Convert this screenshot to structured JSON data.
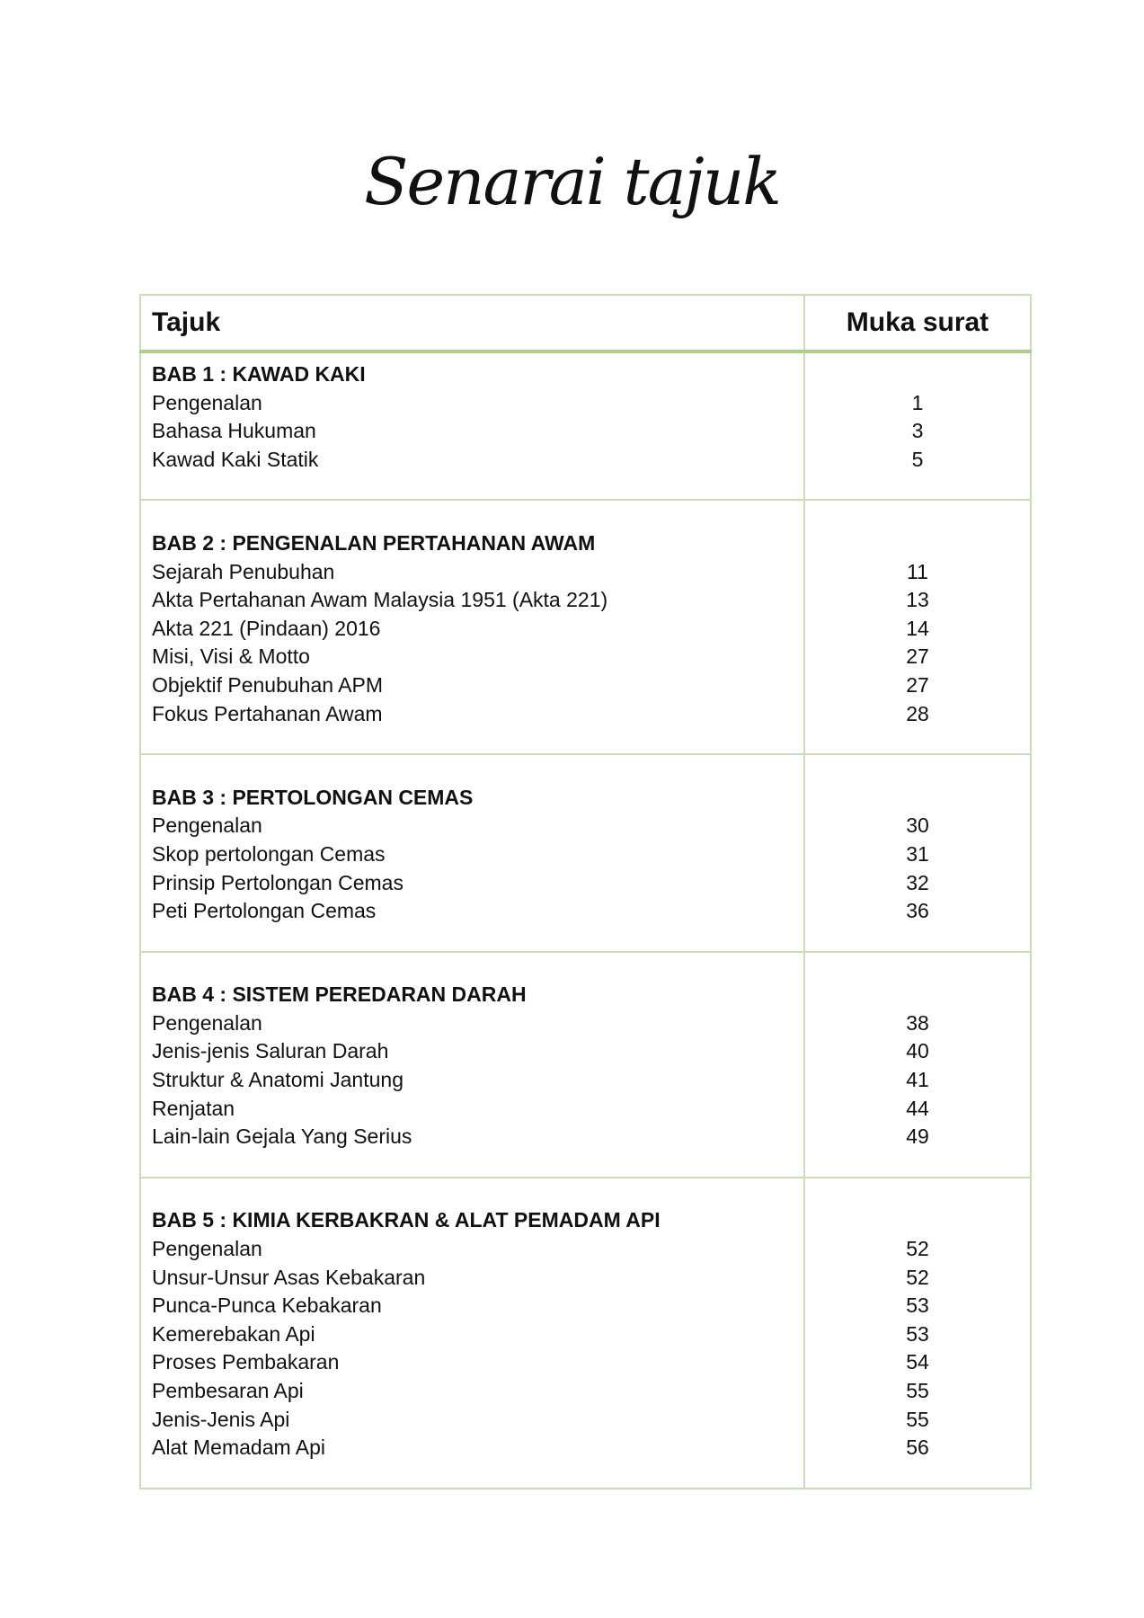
{
  "title": "Senarai tajuk",
  "table": {
    "headers": {
      "topic": "Tajuk",
      "page": "Muka surat"
    },
    "groups": [
      {
        "chapter": "BAB 1 : KAWAD KAKI",
        "items": [
          {
            "topic": "Pengenalan",
            "page": "1"
          },
          {
            "topic": "Bahasa Hukuman",
            "page": "3"
          },
          {
            "topic": "Kawad Kaki Statik",
            "page": "5"
          }
        ]
      },
      {
        "chapter": "BAB 2 : PENGENALAN PERTAHANAN AWAM",
        "items": [
          {
            "topic": "Sejarah Penubuhan",
            "page": "11"
          },
          {
            "topic": "Akta Pertahanan Awam Malaysia 1951 (Akta 221)",
            "page": "13"
          },
          {
            "topic": "Akta 221 (Pindaan) 2016",
            "page": "14"
          },
          {
            "topic": "Misi, Visi & Motto",
            "page": "27"
          },
          {
            "topic": "Objektif Penubuhan APM",
            "page": "27"
          },
          {
            "topic": "Fokus Pertahanan Awam",
            "page": "28"
          }
        ]
      },
      {
        "chapter": "BAB 3 : PERTOLONGAN CEMAS",
        "items": [
          {
            "topic": "Pengenalan",
            "page": "30"
          },
          {
            "topic": "Skop pertolongan Cemas",
            "page": "31"
          },
          {
            "topic": "Prinsip Pertolongan Cemas",
            "page": "32"
          },
          {
            "topic": "Peti Pertolongan Cemas",
            "page": "36"
          }
        ]
      },
      {
        "chapter": "BAB 4 : SISTEM PEREDARAN DARAH",
        "items": [
          {
            "topic": "Pengenalan",
            "page": "38"
          },
          {
            "topic": "Jenis-jenis Saluran Darah",
            "page": "40"
          },
          {
            "topic": "Struktur & Anatomi Jantung",
            "page": "41"
          },
          {
            "topic": "Renjatan",
            "page": "44"
          },
          {
            "topic": "Lain-lain Gejala Yang Serius",
            "page": "49"
          }
        ]
      },
      {
        "chapter": "BAB 5 : KIMIA KERBAKRAN & ALAT PEMADAM API",
        "items": [
          {
            "topic": "Pengenalan",
            "page": "52"
          },
          {
            "topic": "Unsur-Unsur Asas Kebakaran",
            "page": "52"
          },
          {
            "topic": "Punca-Punca Kebakaran",
            "page": "53"
          },
          {
            "topic": "Kemerebakan Api",
            "page": "53"
          },
          {
            "topic": "Proses Pembakaran",
            "page": "54"
          },
          {
            "topic": "Pembesaran Api",
            "page": "55"
          },
          {
            "topic": "Jenis-Jenis Api",
            "page": "55"
          },
          {
            "topic": "Alat Memadam Api",
            "page": "56"
          }
        ]
      }
    ]
  },
  "colors": {
    "border": "#c8ddb8",
    "header_rule": "#a9d08e"
  }
}
